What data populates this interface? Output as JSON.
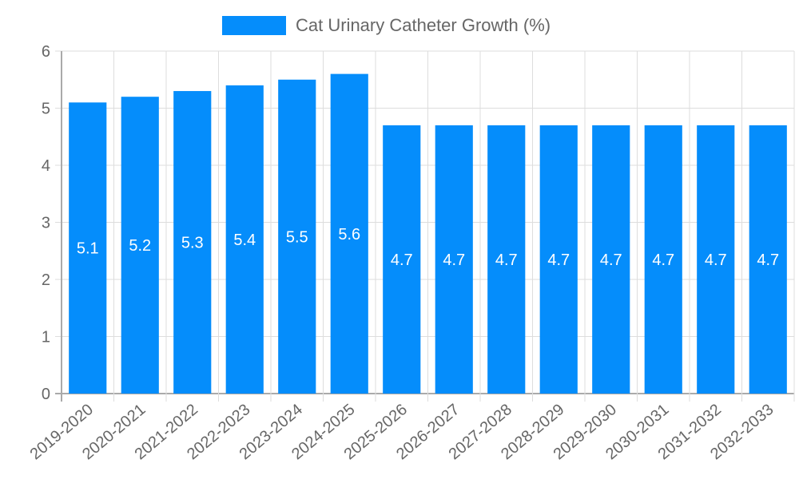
{
  "chart_data": {
    "type": "bar",
    "title": "",
    "legend": {
      "position": "top",
      "entries": [
        "Cat Urinary Catheter Growth (%)"
      ]
    },
    "xlabel": "",
    "ylabel": "",
    "ylim": [
      0,
      6
    ],
    "yticks": [
      0,
      1,
      2,
      3,
      4,
      5,
      6
    ],
    "grid": true,
    "categories": [
      "2019-2020",
      "2020-2021",
      "2021-2022",
      "2022-2023",
      "2023-2024",
      "2024-2025",
      "2025-2026",
      "2026-2027",
      "2027-2028",
      "2028-2029",
      "2029-2030",
      "2030-2031",
      "2031-2032",
      "2032-2033"
    ],
    "series": [
      {
        "name": "Cat Urinary Catheter Growth (%)",
        "color": "#058DFB",
        "values": [
          5.1,
          5.2,
          5.3,
          5.4,
          5.5,
          5.6,
          4.7,
          4.7,
          4.7,
          4.7,
          4.7,
          4.7,
          4.7,
          4.7
        ]
      }
    ]
  }
}
